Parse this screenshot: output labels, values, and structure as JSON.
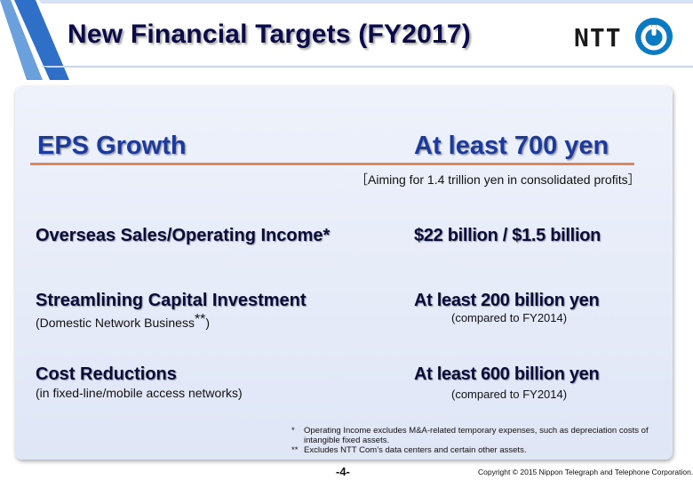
{
  "header": {
    "title": "New Financial Targets (FY2017)",
    "logo_text": "NTT"
  },
  "eps": {
    "label": "EPS Growth",
    "value": "At least 700 yen",
    "note": "［Aiming  for 1.4 trillion yen in consolidated profits］"
  },
  "rows": [
    {
      "label": "Overseas Sales/Operating Income*",
      "value": "$22 billion / $1.5 billion"
    },
    {
      "label": "Streamlining Capital Investment",
      "sublabel": "(Domestic Network Business",
      "sublabel_mark": "**",
      "sublabel_end": ")",
      "value": "At least 200 billion yen",
      "note": "(compared to FY2014)"
    },
    {
      "label": "Cost Reductions",
      "sublabel": "(in fixed-line/mobile  access networks)",
      "value": "At least 600 billion yen",
      "note": "(compared to FY2014)"
    }
  ],
  "footnotes": [
    {
      "mark": "*",
      "text": "Operating Income excludes M&A-related temporary expenses, such as depreciation costs of intangible fixed assets."
    },
    {
      "mark": "**",
      "text": "Excludes NTT Com’s data centers and certain other assets."
    }
  ],
  "footer": {
    "page": "-4-",
    "copyright": "Copyright © 2015 Nippon Telegraph and Telephone Corporation."
  },
  "colors": {
    "title": "#0b0b4a",
    "accent_blue": "#1b3a9c",
    "divider": "#e2855c",
    "logo_blue": "#0a7ac2"
  }
}
